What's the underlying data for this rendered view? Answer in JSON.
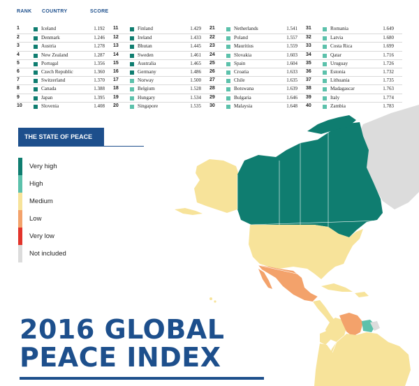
{
  "table": {
    "headers": {
      "rank": "RANK",
      "country": "COUNTRY",
      "score": "SCORE"
    },
    "columns": [
      [
        {
          "rank": "1",
          "country": "Iceland",
          "score": "1.192",
          "level": "very_high"
        },
        {
          "rank": "2",
          "country": "Denmark",
          "score": "1.246",
          "level": "very_high"
        },
        {
          "rank": "3",
          "country": "Austria",
          "score": "1.278",
          "level": "very_high"
        },
        {
          "rank": "4",
          "country": "New Zealand",
          "score": "1.287",
          "level": "very_high"
        },
        {
          "rank": "5",
          "country": "Portugal",
          "score": "1.356",
          "level": "very_high"
        },
        {
          "rank": "6",
          "country": "Czech Republic",
          "score": "1.360",
          "level": "very_high"
        },
        {
          "rank": "7",
          "country": "Switzerland",
          "score": "1.370",
          "level": "very_high"
        },
        {
          "rank": "8",
          "country": "Canada",
          "score": "1.388",
          "level": "very_high"
        },
        {
          "rank": "9",
          "country": "Japan",
          "score": "1.395",
          "level": "very_high"
        },
        {
          "rank": "10",
          "country": "Slovenia",
          "score": "1.408",
          "level": "very_high"
        }
      ],
      [
        {
          "rank": "11",
          "country": "Finland",
          "score": "1.429",
          "level": "very_high"
        },
        {
          "rank": "12",
          "country": "Ireland",
          "score": "1.433",
          "level": "very_high"
        },
        {
          "rank": "13",
          "country": "Bhutan",
          "score": "1.445",
          "level": "very_high"
        },
        {
          "rank": "14",
          "country": "Sweden",
          "score": "1.461",
          "level": "very_high"
        },
        {
          "rank": "15",
          "country": "Australia",
          "score": "1.465",
          "level": "very_high"
        },
        {
          "rank": "16",
          "country": "Germany",
          "score": "1.486",
          "level": "very_high"
        },
        {
          "rank": "17",
          "country": "Norway",
          "score": "1.500",
          "level": "high"
        },
        {
          "rank": "18",
          "country": "Belgium",
          "score": "1.528",
          "level": "high"
        },
        {
          "rank": "19",
          "country": "Hungary",
          "score": "1.534",
          "level": "high"
        },
        {
          "rank": "20",
          "country": "Singapore",
          "score": "1.535",
          "level": "high"
        }
      ],
      [
        {
          "rank": "21",
          "country": "Netherlands",
          "score": "1.541",
          "level": "high"
        },
        {
          "rank": "22",
          "country": "Poland",
          "score": "1.557",
          "level": "high"
        },
        {
          "rank": "23",
          "country": "Mauritius",
          "score": "1.559",
          "level": "high"
        },
        {
          "rank": "24",
          "country": "Slovakia",
          "score": "1.603",
          "level": "high"
        },
        {
          "rank": "25",
          "country": "Spain",
          "score": "1.604",
          "level": "high"
        },
        {
          "rank": "26",
          "country": "Croatia",
          "score": "1.633",
          "level": "high"
        },
        {
          "rank": "27",
          "country": "Chile",
          "score": "1.635",
          "level": "high"
        },
        {
          "rank": "28",
          "country": "Botswana",
          "score": "1.639",
          "level": "high"
        },
        {
          "rank": "29",
          "country": "Bulgaria",
          "score": "1.646",
          "level": "high"
        },
        {
          "rank": "30",
          "country": "Malaysia",
          "score": "1.648",
          "level": "high"
        }
      ],
      [
        {
          "rank": "31",
          "country": "Romania",
          "score": "1.649",
          "level": "high"
        },
        {
          "rank": "32",
          "country": "Latvia",
          "score": "1.680",
          "level": "high"
        },
        {
          "rank": "33",
          "country": "Costa Rica",
          "score": "1.699",
          "level": "high"
        },
        {
          "rank": "34",
          "country": "Qatar",
          "score": "1.716",
          "level": "high"
        },
        {
          "rank": "35",
          "country": "Uruguay",
          "score": "1.726",
          "level": "high"
        },
        {
          "rank": "36",
          "country": "Estonia",
          "score": "1.732",
          "level": "high"
        },
        {
          "rank": "37",
          "country": "Lithuania",
          "score": "1.735",
          "level": "high"
        },
        {
          "rank": "38",
          "country": "Madagascar",
          "score": "1.763",
          "level": "high"
        },
        {
          "rank": "39",
          "country": "Italy",
          "score": "1.774",
          "level": "high"
        },
        {
          "rank": "40",
          "country": "Zambia",
          "score": "1.783",
          "level": "high"
        }
      ]
    ]
  },
  "legend": {
    "title": "THE STATE OF PEACE",
    "items": [
      {
        "label": "Very high",
        "color": "#0f7d70"
      },
      {
        "label": "High",
        "color": "#5cc1ab"
      },
      {
        "label": "Medium",
        "color": "#f7e39a"
      },
      {
        "label": "Low",
        "color": "#f3a26b"
      },
      {
        "label": "Very low",
        "color": "#e2342b"
      },
      {
        "label": "Not included",
        "color": "#dcdcdc"
      }
    ]
  },
  "colors": {
    "very_high": "#0f7d70",
    "high": "#5cc1ab",
    "medium": "#f7e39a",
    "low": "#f3a26b",
    "very_low": "#e2342b",
    "not_included": "#dcdcdc",
    "brand": "#1d4f8c"
  },
  "title": {
    "line1": "2016 GLOBAL",
    "line2": "PEACE INDEX"
  }
}
